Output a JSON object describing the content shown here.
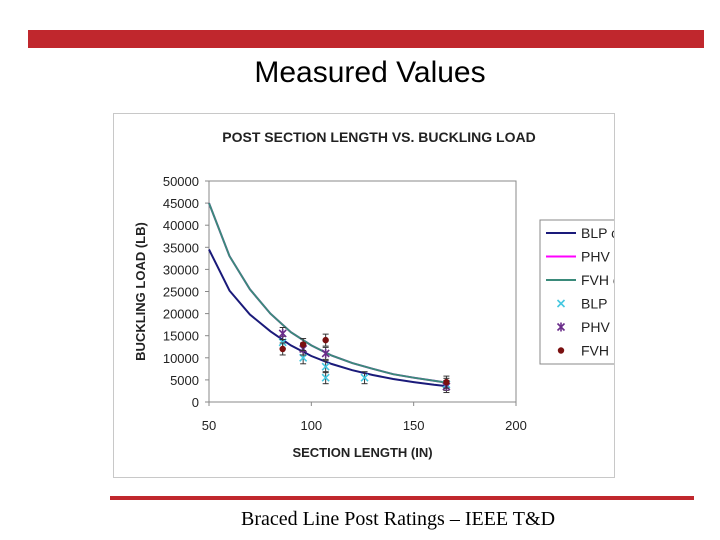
{
  "slide": {
    "title": "Measured Values",
    "footer": "Braced Line Post Ratings – IEEE T&D"
  },
  "colors": {
    "accent": "#c0272d"
  },
  "chart_data": {
    "type": "scatter",
    "title": "POST SECTION LENGTH VS. BUCKLING LOAD",
    "xlabel": "SECTION LENGTH (IN)",
    "ylabel": "BUCKLING LOAD (LB)",
    "xlim": [
      50,
      200
    ],
    "ylim": [
      0,
      50000
    ],
    "x_ticks": [
      50,
      100,
      150,
      200
    ],
    "y_ticks": [
      0,
      5000,
      10000,
      15000,
      20000,
      25000,
      30000,
      35000,
      40000,
      45000,
      50000
    ],
    "grid": false,
    "legend_position": "right",
    "series": [
      {
        "name": "BLP crv",
        "kind": "curve",
        "color": "#1a1a7a",
        "x": [
          50,
          60,
          70,
          80,
          90,
          100,
          110,
          120,
          130,
          140,
          150,
          160,
          166
        ],
        "y": [
          34500,
          25200,
          19800,
          16000,
          12800,
          10400,
          8600,
          7200,
          6100,
          5200,
          4500,
          3900,
          3600
        ]
      },
      {
        "name": "PHV crv",
        "kind": "curve",
        "color": "#ff00ff",
        "x": [
          50,
          60,
          70,
          80,
          90,
          100,
          110,
          120,
          130,
          140,
          150,
          160,
          166
        ],
        "y": [
          45000,
          33000,
          25500,
          20000,
          15800,
          12800,
          10500,
          8800,
          7500,
          6300,
          5500,
          4800,
          4400
        ]
      },
      {
        "name": "FVH crv",
        "kind": "curve",
        "color": "#3a8a7a",
        "x": [
          50,
          60,
          70,
          80,
          90,
          100,
          110,
          120,
          130,
          140,
          150,
          160,
          166
        ],
        "y": [
          45000,
          33000,
          25500,
          20000,
          15800,
          12800,
          10500,
          8800,
          7500,
          6300,
          5500,
          4800,
          4400
        ]
      },
      {
        "name": "BLP",
        "kind": "points",
        "marker": "x",
        "color": "#44c8e0",
        "x": [
          86,
          96,
          107,
          107,
          126,
          166
        ],
        "y": [
          13500,
          10000,
          8000,
          5500,
          5500,
          4000
        ]
      },
      {
        "name": "PHV",
        "kind": "points",
        "marker": "star",
        "color": "#6a2c8a",
        "x": [
          86,
          96,
          107,
          166
        ],
        "y": [
          15500,
          12000,
          11000,
          3500
        ]
      },
      {
        "name": "FVH",
        "kind": "points",
        "marker": "dot",
        "color": "#7a1010",
        "x": [
          86,
          96,
          107,
          166
        ],
        "y": [
          12000,
          13000,
          14000,
          4500
        ]
      }
    ]
  }
}
